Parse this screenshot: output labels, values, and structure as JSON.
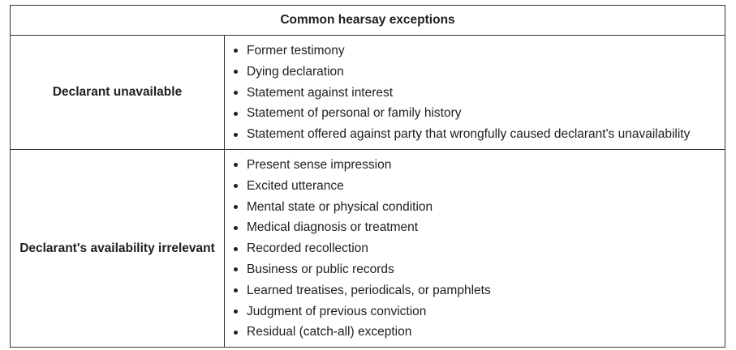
{
  "table": {
    "title": "Common hearsay exceptions",
    "rows": [
      {
        "category": "Declarant unavailable",
        "items": [
          "Former testimony",
          "Dying declaration",
          "Statement against interest",
          "Statement of personal or family history",
          "Statement offered against party that wrongfully caused declarant's unavailability"
        ]
      },
      {
        "category": "Declarant's availability irrelevant",
        "items": [
          "Present sense impression",
          "Excited utterance",
          "Mental state or physical condition",
          "Medical diagnosis or treatment",
          "Recorded recollection",
          "Business or public records",
          "Learned treatises, periodicals, or pamphlets",
          "Judgment of previous conviction",
          "Residual (catch-all) exception"
        ]
      }
    ]
  }
}
